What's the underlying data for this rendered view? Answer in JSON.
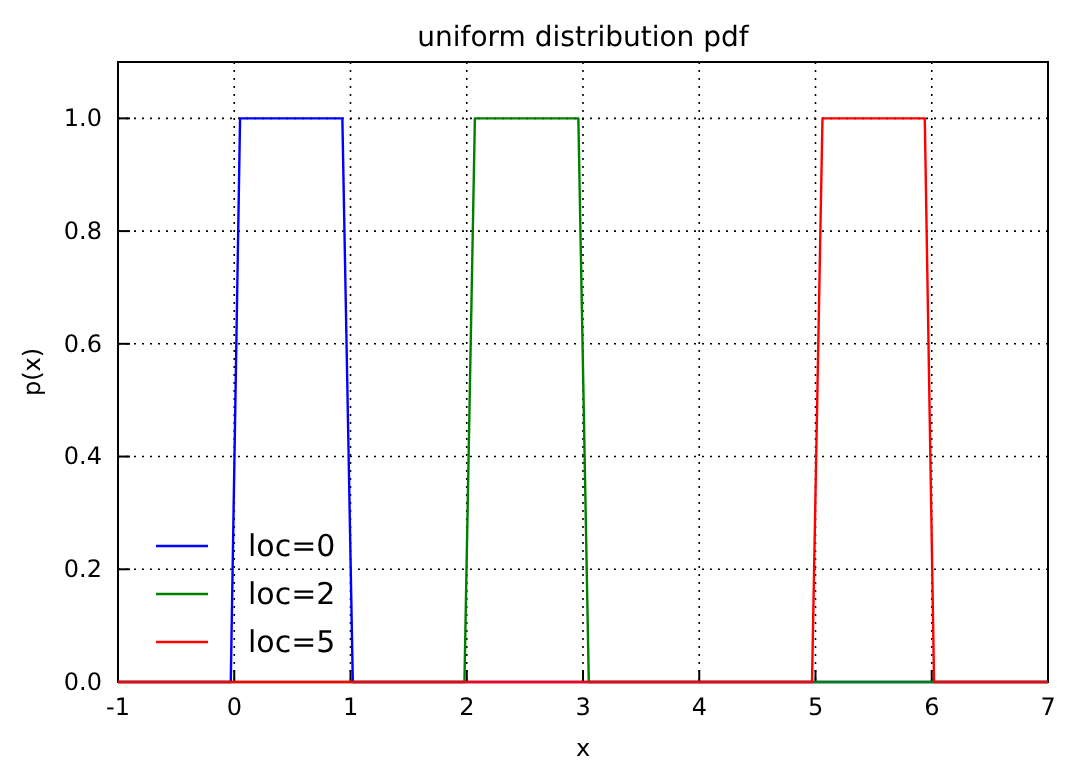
{
  "chart_data": {
    "type": "line",
    "title": "uniform distribution pdf",
    "xlabel": "x",
    "ylabel": "p(x)",
    "xlim": [
      -1,
      7
    ],
    "ylim": [
      0,
      1.1
    ],
    "xticks": [
      -1,
      0,
      1,
      2,
      3,
      4,
      5,
      6,
      7
    ],
    "yticks": [
      {
        "value": 0,
        "label": "0.0"
      },
      {
        "value": 0.2,
        "label": "0.2"
      },
      {
        "value": 0.4,
        "label": "0.4"
      },
      {
        "value": 0.6,
        "label": "0.6"
      },
      {
        "value": 0.8,
        "label": "0.8"
      },
      {
        "value": 1,
        "label": "1.0"
      }
    ],
    "grid": true,
    "legend": "bottom left",
    "line_style": "solid",
    "marker": "none",
    "series": [
      {
        "name": "loc=0",
        "color": "#0000ff",
        "x": [
          -1,
          -0.03,
          0.05,
          0.93,
          1.02,
          7
        ],
        "values": [
          0,
          0,
          1,
          1,
          0,
          0
        ]
      },
      {
        "name": "loc=2",
        "color": "#008000",
        "x": [
          -1,
          1.98,
          2.07,
          2.96,
          3.05,
          7
        ],
        "values": [
          0,
          0,
          1,
          1,
          0,
          0
        ]
      },
      {
        "name": "loc=5",
        "color": "#ff0000",
        "x": [
          -1,
          4.97,
          5.06,
          5.94,
          6.02,
          7
        ],
        "values": [
          0,
          0,
          1,
          1,
          0,
          0
        ]
      }
    ]
  }
}
